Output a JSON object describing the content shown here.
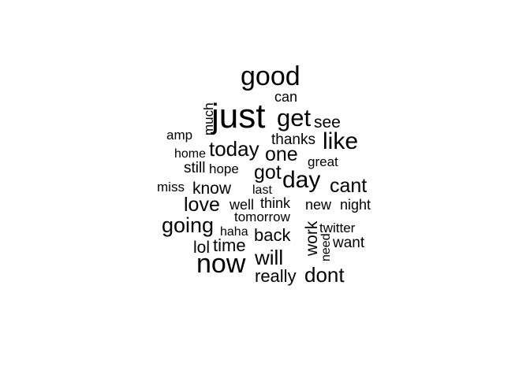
{
  "chart_data": {
    "type": "wordcloud",
    "title": "",
    "text_color": "#000000",
    "background_color": "#ffffff",
    "words": [
      {
        "text": "just",
        "rank": 1
      },
      {
        "text": "good",
        "rank": 2
      },
      {
        "text": "now",
        "rank": 3
      },
      {
        "text": "get",
        "rank": 4
      },
      {
        "text": "day",
        "rank": 5
      },
      {
        "text": "like",
        "rank": 6
      },
      {
        "text": "today",
        "rank": 7
      },
      {
        "text": "going",
        "rank": 8
      },
      {
        "text": "cant",
        "rank": 9
      },
      {
        "text": "dont",
        "rank": 10
      },
      {
        "text": "love",
        "rank": 11
      },
      {
        "text": "will",
        "rank": 12
      },
      {
        "text": "one",
        "rank": 13
      },
      {
        "text": "got",
        "rank": 14
      },
      {
        "text": "back",
        "rank": 15
      },
      {
        "text": "really",
        "rank": 16
      },
      {
        "text": "know",
        "rank": 17
      },
      {
        "text": "time",
        "rank": 18
      },
      {
        "text": "see",
        "rank": 19
      },
      {
        "text": "work",
        "rank": 20
      },
      {
        "text": "lol",
        "rank": 21
      },
      {
        "text": "much",
        "rank": 22
      },
      {
        "text": "thanks",
        "rank": 23
      },
      {
        "text": "can",
        "rank": 24
      },
      {
        "text": "think",
        "rank": 25
      },
      {
        "text": "well",
        "rank": 26
      },
      {
        "text": "new",
        "rank": 27
      },
      {
        "text": "night",
        "rank": 28
      },
      {
        "text": "want",
        "rank": 29
      },
      {
        "text": "miss",
        "rank": 30
      },
      {
        "text": "still",
        "rank": 31
      },
      {
        "text": "amp",
        "rank": 32
      },
      {
        "text": "tomorrow",
        "rank": 33
      },
      {
        "text": "great",
        "rank": 34
      },
      {
        "text": "twitter",
        "rank": 35
      },
      {
        "text": "haha",
        "rank": 36
      },
      {
        "text": "hope",
        "rank": 37
      },
      {
        "text": "home",
        "rank": 38
      },
      {
        "text": "last",
        "rank": 39
      },
      {
        "text": "need",
        "rank": 40
      }
    ]
  }
}
